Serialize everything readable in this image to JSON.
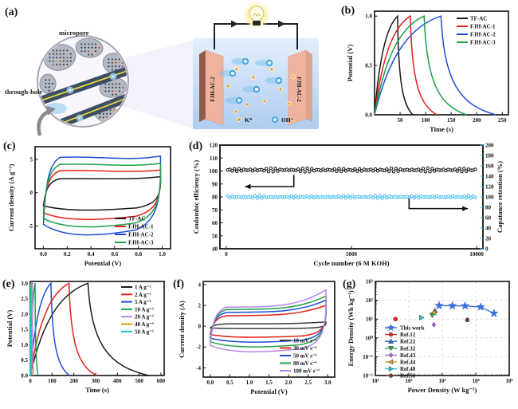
{
  "figure": {
    "panel_labels": {
      "a": "(a)",
      "b": "(b)",
      "c": "(c)",
      "d": "(d)",
      "e": "(e)",
      "f": "(f)",
      "g": "(g)"
    }
  },
  "panel_a": {
    "micropore_label": "micropore",
    "through_hole_label": "through-hole",
    "electrode_left_label": "FJH-AC-2",
    "electrode_right_label": "FJH-AC-2",
    "ion_legend": {
      "cation": "K⁺",
      "anion": "OH⁻"
    },
    "colors": {
      "electrolyte_top": "#e4eefb",
      "electrolyte_bottom": "#aecdf0",
      "electrode_front": "#f0b49e",
      "electrode_side_dark": "#8f5a4b",
      "electrode_side_light": "#d9a58d",
      "wire": "#222222",
      "bulb_glow": "#fbf4b6",
      "cation": "#f0a028",
      "anion": "#3aa0e0",
      "tube": "#3d4f66",
      "tube_line": "#f2e23c",
      "blob": "#b3b9c3",
      "circle_fill": "#f7f6fa"
    }
  },
  "chart_data": [
    {
      "id": "b",
      "type": "line",
      "subtype": "galvanostatic-charge-discharge",
      "xlabel": "Time (s)",
      "ylabel": "Potential (V)",
      "xlim": [
        0,
        262
      ],
      "ylim": [
        0,
        1.05
      ],
      "xticks": [
        50,
        100,
        150,
        200,
        250
      ],
      "xtick_labels": [
        "50",
        "100",
        "150",
        "200",
        "250"
      ],
      "yticks": [
        0,
        0.5,
        1.0
      ],
      "ytick_labels": [
        "0.0",
        "0.5",
        "1.0"
      ],
      "legend_position": "top-right",
      "series": [
        {
          "name": "TF-AC",
          "color": "#1a1a1a",
          "peak_time_s": 45,
          "end_time_s": 75,
          "peak_potential_v": 1.0
        },
        {
          "name": "FJH-AC-1",
          "color": "#e32119",
          "peak_time_s": 70,
          "end_time_s": 122,
          "peak_potential_v": 1.0
        },
        {
          "name": "FJH-AC-2",
          "color": "#1f4fd8",
          "peak_time_s": 130,
          "end_time_s": 237,
          "peak_potential_v": 1.0
        },
        {
          "name": "FJH-AC-3",
          "color": "#1fa04a",
          "peak_time_s": 97,
          "end_time_s": 180,
          "peak_potential_v": 1.0
        }
      ]
    },
    {
      "id": "c",
      "type": "line",
      "subtype": "cyclic-voltammetry",
      "xlabel": "Potential (V)",
      "ylabel": "Current density (A g⁻¹)",
      "xlim": [
        -0.07,
        1.07
      ],
      "ylim": [
        -8.4,
        6.9
      ],
      "xticks": [
        0,
        0.2,
        0.4,
        0.6,
        0.8,
        1.0
      ],
      "xtick_labels": [
        "0.0",
        "0.2",
        "0.4",
        "0.6",
        "0.8",
        "1.0"
      ],
      "yticks": [
        -5,
        0,
        5
      ],
      "ytick_labels": [
        "-5",
        "0",
        "5"
      ],
      "legend_position": "bottom-right",
      "x_range_v": [
        0,
        1
      ],
      "series": [
        {
          "name": "TF-AC",
          "color": "#1a1a1a",
          "upper": 2.1,
          "lower": -2.8,
          "right_peak": 2.4
        },
        {
          "name": "FJH-AC-1",
          "color": "#e32119",
          "upper": 3.3,
          "lower": -4.3,
          "right_peak": 3.4
        },
        {
          "name": "FJH-AC-2",
          "color": "#1f4fd8",
          "upper": 5.3,
          "lower": -6.8,
          "right_peak": 5.5
        },
        {
          "name": "FJH-AC-3",
          "color": "#1fa04a",
          "upper": 4.25,
          "lower": -5.5,
          "right_peak": 4.4
        }
      ]
    },
    {
      "id": "d",
      "type": "scatter",
      "subtype": "cycling-stability",
      "xlabel": "Cycle number (6 M KOH)",
      "ylabel_left": "Coulombic efficiency (%)",
      "ylabel_right": "Capatance retention (%)",
      "xlim": [
        -250,
        10250
      ],
      "xticks": [
        0,
        5000,
        10000
      ],
      "xtick_labels": [
        "0",
        "5000",
        "10000"
      ],
      "ylim_left": [
        40,
        120
      ],
      "yticks_left": [
        40,
        50,
        60,
        70,
        80,
        90,
        100,
        110,
        120
      ],
      "ytick_labels_left": [
        "40",
        "50",
        "60",
        "70",
        "80",
        "90",
        "100",
        "110",
        "120"
      ],
      "ylim_right": [
        0,
        200
      ],
      "yticks_right": [
        0,
        20,
        40,
        60,
        80,
        100,
        120,
        140,
        160,
        180,
        200
      ],
      "ytick_labels_right": [
        "0",
        "20",
        "40",
        "60",
        "80",
        "100",
        "120",
        "140",
        "160",
        "180",
        "200"
      ],
      "right_axis_color": "#45bdf0",
      "series": [
        {
          "name": "Coulombic efficiency",
          "axis": "left",
          "color": "#111111",
          "mean": 100.8,
          "n_points": 110
        },
        {
          "name": "Capacitance retention",
          "axis": "right",
          "color": "#45bdf0",
          "mean": 100,
          "n_points": 110
        }
      ]
    },
    {
      "id": "e",
      "type": "line",
      "subtype": "galvanostatic-charge-discharge",
      "xlabel": "Time (s)",
      "ylabel": "Potential (V)",
      "xlim": [
        0,
        615
      ],
      "ylim": [
        0,
        3.06
      ],
      "xticks": [
        0,
        100,
        200,
        300,
        400,
        500,
        600
      ],
      "xtick_labels": [
        "0",
        "100",
        "200",
        "300",
        "400",
        "500",
        "600"
      ],
      "yticks": [
        0,
        0.5,
        1.0,
        1.5,
        2.0,
        2.5,
        3.0
      ],
      "ytick_labels": [
        "0.0",
        "0.5",
        "1.0",
        "1.5",
        "2.0",
        "2.5",
        "3.0"
      ],
      "legend_position": "top-right",
      "series": [
        {
          "name": "1 A g⁻¹",
          "color": "#1a1a1a",
          "peak_time_s": 265,
          "end_time_s": 545,
          "peak_potential_v": 3.0
        },
        {
          "name": "2 A g⁻¹",
          "color": "#e32119",
          "peak_time_s": 178,
          "end_time_s": 305,
          "peak_potential_v": 3.0
        },
        {
          "name": "5 A g⁻¹",
          "color": "#1f4fd8",
          "peak_time_s": 95,
          "end_time_s": 180,
          "peak_potential_v": 3.0
        },
        {
          "name": "10 A g⁻¹",
          "color": "#1fa04a",
          "peak_time_s": 22,
          "end_time_s": 36,
          "peak_potential_v": 3.0
        },
        {
          "name": "20 A g⁻¹",
          "color": "#b586e8",
          "peak_time_s": 9,
          "end_time_s": 15,
          "peak_potential_v": 3.0
        },
        {
          "name": "40 A g⁻¹",
          "color": "#d89c00",
          "peak_time_s": 4,
          "end_time_s": 7,
          "peak_potential_v": 3.0
        },
        {
          "name": "50 A g⁻¹",
          "color": "#17c3cf",
          "peak_time_s": 2.5,
          "end_time_s": 5,
          "peak_potential_v": 3.0
        }
      ]
    },
    {
      "id": "f",
      "type": "line",
      "subtype": "cyclic-voltammetry",
      "xlabel": "Potential (V)",
      "ylabel": "Current density (A)",
      "xlim": [
        -0.18,
        3.18
      ],
      "ylim": [
        -4.9,
        4.3
      ],
      "xticks": [
        0,
        0.5,
        1.0,
        1.5,
        2.0,
        2.5,
        3.0
      ],
      "xtick_labels": [
        "0.0",
        "0.5",
        "1.0",
        "1.5",
        "2.0",
        "2.5",
        "3.0"
      ],
      "yticks": [
        -4,
        -2,
        0,
        2,
        4
      ],
      "ytick_labels": [
        "-4",
        "-2",
        "0",
        "2",
        "4"
      ],
      "legend_position": "bottom-right",
      "x_range_v": [
        0,
        3
      ],
      "series": [
        {
          "name": "10 mV s⁻¹",
          "color": "#3c3c3c",
          "upper": 0.22,
          "lower": -0.25,
          "right_peak": 0.4
        },
        {
          "name": "30 mV s⁻¹",
          "color": "#e32119",
          "upper": 1.0,
          "lower": -1.15,
          "right_peak": 2.0
        },
        {
          "name": "50 mV s⁻¹",
          "color": "#1f4fd8",
          "upper": 1.32,
          "lower": -1.65,
          "right_peak": 2.5
        },
        {
          "name": "80 mV s⁻¹",
          "color": "#1fa04a",
          "upper": 1.6,
          "lower": -2.15,
          "right_peak": 2.9
        },
        {
          "name": "100 mV s⁻¹",
          "color": "#b586e8",
          "upper": 1.82,
          "lower": -2.65,
          "right_peak": 3.5
        }
      ]
    },
    {
      "id": "g",
      "type": "scatter",
      "subtype": "ragone-plot",
      "xlabel": "Power Density (W kg⁻¹)",
      "ylabel": "Energy Density (Wh kg⁻¹)",
      "xlim_log": [
        10,
        100000
      ],
      "ylim_log": [
        0.01,
        1000
      ],
      "xtick_labels": [
        "10¹",
        "10²",
        "10³",
        "10⁴",
        "10⁵"
      ],
      "ytick_labels": [
        "10⁻²",
        "10⁻¹",
        "10⁰",
        "10¹",
        "10²",
        "10³"
      ],
      "grid": "dashed",
      "legend_position": "left-middle",
      "series": [
        {
          "name": "This work",
          "color": "#3a6fd8",
          "marker": "star",
          "line": true,
          "points": [
            [
              800,
              52
            ],
            [
              2000,
              51
            ],
            [
              4800,
              50
            ],
            [
              14000,
              44
            ],
            [
              35000,
              20
            ]
          ]
        },
        {
          "name": "Ref.12",
          "color": "#e8251f",
          "marker": "circle",
          "points": [
            [
              40,
              10
            ]
          ]
        },
        {
          "name": "Ref.22",
          "color": "#2b5fd9",
          "marker": "triangle-up",
          "points": [
            [
              600,
              28
            ]
          ]
        },
        {
          "name": "Ref.32",
          "color": "#2fa052",
          "marker": "triangle-down",
          "points": [
            [
              500,
              16
            ]
          ]
        },
        {
          "name": "Ref.43",
          "color": "#a86ae0",
          "marker": "diamond",
          "points": [
            [
              560,
              5
            ]
          ]
        },
        {
          "name": "Ref.44",
          "color": "#e0a020",
          "marker": "triangle-left",
          "points": [
            [
              560,
              22
            ]
          ]
        },
        {
          "name": "Ref.48",
          "color": "#25c8d8",
          "marker": "triangle-right",
          "points": [
            [
              240,
              12
            ]
          ]
        },
        {
          "name": "Ref.50",
          "color": "#7a3b3b",
          "marker": "circle",
          "points": [
            [
              5600,
              9
            ]
          ]
        }
      ]
    }
  ]
}
